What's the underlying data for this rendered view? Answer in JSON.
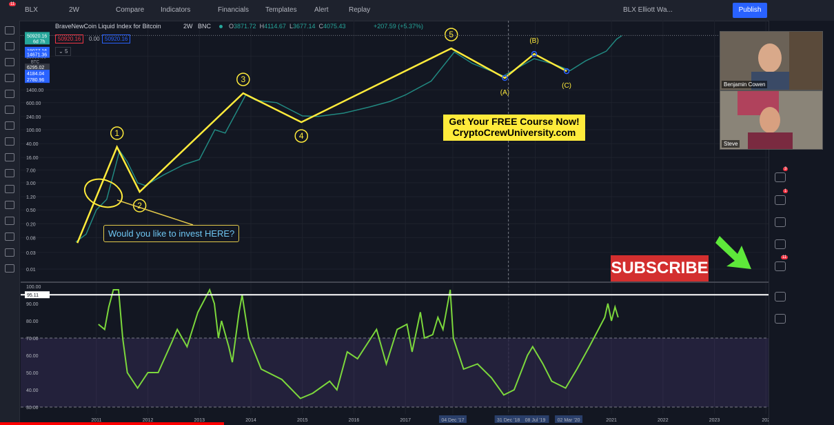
{
  "toolbar": {
    "symbol": "BLX",
    "interval": "2W",
    "items": [
      "Compare",
      "Indicators",
      "Financials",
      "Templates",
      "Alert",
      "Replay"
    ],
    "layout_name": "BLX Elliott Wa...",
    "publish": "Publish",
    "menu_badge": "11"
  },
  "legend": {
    "title": "BraveNewCoin Liquid Index for Bitcoin",
    "interval": "2W",
    "exchange": "BNC",
    "ohlc": [
      {
        "label": "O",
        "value": 3871.72
      },
      {
        "label": "H",
        "value": 4114.67
      },
      {
        "label": "L",
        "value": 3677.14
      },
      {
        "label": "C",
        "value": 4075.43
      }
    ],
    "change": "+207.59 (+5.37%)",
    "sell": 50920.16,
    "spread": "0.00",
    "buy": 50920.16,
    "collapse_count": 5
  },
  "chart_data": [
    {
      "type": "line",
      "log_scale": true,
      "grid": true,
      "xlim": [
        2009.53,
        2024.05
      ],
      "ylim": [
        0.0044,
        135000
      ],
      "axis_unit": "BTC",
      "xticks": [
        2011,
        2012,
        2013,
        2014,
        2015,
        2016,
        2017,
        {
          "value": 2017.92,
          "label": "04 Dec '17"
        },
        {
          "value": 2019.0,
          "label": "31 Dec '18"
        },
        {
          "value": 2019.52,
          "label": "08 Jul '19"
        },
        {
          "value": 2020.17,
          "label": "02 Mar '20"
        },
        2021,
        2022,
        2023,
        {
          "value": 2024,
          "label": "202"
        }
      ],
      "highlighted_xticks": [
        "04 Dec '17",
        "31 Dec '18",
        "08 Jul '19",
        "02 Mar '20"
      ],
      "yticks": [
        {
          "value": 13000,
          "label": "13000.00"
        },
        {
          "value": 1400,
          "label": "1400.00"
        },
        {
          "value": 600,
          "label": "600.00"
        },
        {
          "value": 240,
          "label": "240.00"
        },
        {
          "value": 100,
          "label": "100.00"
        },
        {
          "value": 40,
          "label": "40.00"
        },
        {
          "value": 16,
          "label": "16.00"
        },
        {
          "value": 7,
          "label": "7.00"
        },
        {
          "value": 3,
          "label": "3.00"
        },
        {
          "value": 1.2,
          "label": "1.20"
        },
        {
          "value": 0.5,
          "label": "0.50"
        },
        {
          "value": 0.2,
          "label": "0.20"
        },
        0.08,
        0.03,
        0.01
      ],
      "price_levels": [
        50920.16,
        19077.16,
        14671.36,
        6295.02,
        4184.04,
        2780.96
      ],
      "price_level_colors": [
        "#26a69a",
        "#2962ff",
        "#2962ff",
        "#363a45",
        "#2962ff",
        "#2962ff"
      ],
      "last_bar_timer": "6d 7h",
      "x": [
        2010.6,
        2010.8,
        2011.0,
        2011.2,
        2011.45,
        2011.6,
        2011.8,
        2011.95,
        2012.3,
        2012.7,
        2013.0,
        2013.3,
        2013.5,
        2013.9,
        2014.1,
        2014.5,
        2015.0,
        2015.3,
        2015.8,
        2016.3,
        2016.7,
        2017.0,
        2017.5,
        2017.95,
        2018.3,
        2018.9,
        2019.5,
        2019.9,
        2020.2,
        2020.5,
        2020.9,
        2021.1,
        2021.2
      ],
      "series": [
        {
          "name": "BLX",
          "color": "#26a69a",
          "values": [
            0.06,
            0.1,
            0.5,
            1.0,
            25,
            12,
            3,
            2.5,
            5,
            10,
            14,
            100,
            80,
            1000,
            700,
            600,
            250,
            240,
            300,
            450,
            650,
            1000,
            2500,
            17000,
            8000,
            3500,
            11000,
            7500,
            5000,
            9500,
            18000,
            40000,
            50000
          ]
        }
      ],
      "waves": {
        "color": "#ffeb3b",
        "labels": [
          null,
          "1",
          "2",
          "3",
          "4",
          "5",
          "(A)",
          "(B)",
          "(C)"
        ],
        "x": [
          2010.63,
          2011.4,
          2011.84,
          2013.85,
          2014.98,
          2017.89,
          2018.93,
          2019.5,
          2020.13
        ],
        "values": [
          0.056,
          32,
          1.65,
          1120,
          165,
          21700,
          3060,
          15000,
          4820
        ]
      }
    },
    {
      "type": "line",
      "grid": true,
      "xlim": [
        2009.53,
        2024.05
      ],
      "ylim": [
        26,
        102
      ],
      "yticks": [
        {
          "value": 100,
          "label": "100.00"
        },
        {
          "value": 90,
          "label": "90.00"
        },
        {
          "value": 80,
          "label": "80.00"
        },
        {
          "value": 70,
          "label": "70.00"
        },
        {
          "value": 60,
          "label": "60.00"
        },
        {
          "value": 50,
          "label": "50.00"
        },
        {
          "value": 40,
          "label": "40.00"
        },
        {
          "value": 30,
          "label": "30.00"
        }
      ],
      "bands": [
        30,
        70
      ],
      "band_color": "rgba(126,87,194,0.16)",
      "level": 95.11,
      "x": [
        2011.04,
        2011.16,
        2011.24,
        2011.33,
        2011.43,
        2011.51,
        2011.6,
        2011.8,
        2012.0,
        2012.2,
        2012.47,
        2012.57,
        2012.76,
        2012.97,
        2013.2,
        2013.29,
        2013.37,
        2013.43,
        2013.57,
        2013.64,
        2013.77,
        2013.83,
        2013.96,
        2014.2,
        2014.6,
        2014.96,
        2015.2,
        2015.53,
        2015.67,
        2015.87,
        2016.07,
        2016.44,
        2016.63,
        2016.84,
        2017.03,
        2017.13,
        2017.29,
        2017.37,
        2017.53,
        2017.63,
        2017.73,
        2017.87,
        2017.93,
        2018.13,
        2018.4,
        2018.67,
        2018.91,
        2019.11,
        2019.37,
        2019.47,
        2019.67,
        2019.84,
        2020.11,
        2020.33,
        2020.57,
        2020.87,
        2020.93,
        2021.0,
        2021.07,
        2021.13
      ],
      "series": [
        {
          "name": "RSI",
          "color": "#7cd83c",
          "values": [
            78,
            75,
            88,
            98,
            98,
            70,
            50,
            41,
            50,
            50,
            68,
            75,
            65,
            85,
            98,
            90,
            70,
            80,
            65,
            56,
            85,
            95,
            70,
            52,
            46,
            35,
            38,
            45,
            40,
            62,
            58,
            75,
            55,
            75,
            78,
            62,
            85,
            70,
            72,
            82,
            75,
            98,
            70,
            52,
            55,
            47,
            37,
            40,
            60,
            65,
            55,
            45,
            41,
            52,
            65,
            82,
            90,
            80,
            88,
            82
          ]
        }
      ]
    }
  ],
  "annotations": {
    "question": "Would you like to invest HERE?",
    "course_line1": "Get Your FREE Course Now!",
    "course_line2": "CryptoCrewUniversity.com",
    "subscribe": "SUBSCRIBE"
  },
  "webcams": [
    "Benjamin Cowen",
    "Steve"
  ],
  "sidebar_badges": [
    "3",
    "1",
    "11"
  ]
}
